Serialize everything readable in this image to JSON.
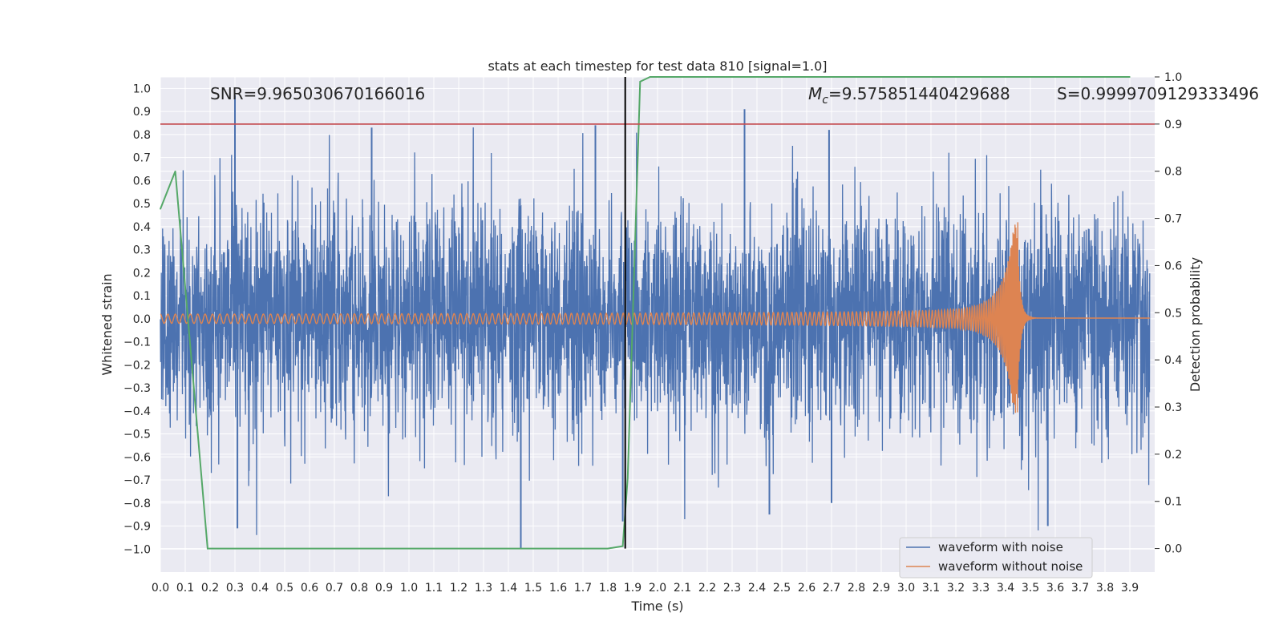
{
  "chart_data": {
    "type": "line",
    "title": "stats at each timestep for test data 810 [signal=1.0]",
    "xlabel": "Time (s)",
    "ylabel": "Whitened strain",
    "y2label": "Detection probability",
    "xlim": [
      0.0,
      4.0
    ],
    "ylim": [
      -1.1,
      1.05
    ],
    "y2lim": [
      -0.05,
      1.0
    ],
    "x_ticks": [
      0.0,
      0.1,
      0.2,
      0.3,
      0.4,
      0.5,
      0.6,
      0.7,
      0.8,
      0.9,
      1.0,
      1.1,
      1.2,
      1.3,
      1.4,
      1.5,
      1.6,
      1.7,
      1.8,
      1.9,
      2.0,
      2.1,
      2.2,
      2.3,
      2.4,
      2.5,
      2.6,
      2.7,
      2.8,
      2.9,
      3.0,
      3.1,
      3.2,
      3.3,
      3.4,
      3.5,
      3.6,
      3.7,
      3.8,
      3.9
    ],
    "y_ticks": [
      1.0,
      0.9,
      0.8,
      0.7,
      0.6,
      0.5,
      0.4,
      0.3,
      0.2,
      0.1,
      0.0,
      -0.1,
      -0.2,
      -0.3,
      -0.4,
      -0.5,
      -0.6,
      -0.7,
      -0.8,
      -0.9,
      -1.0
    ],
    "y2_ticks": [
      1.0,
      0.9,
      0.8,
      0.7,
      0.6,
      0.5,
      0.4,
      0.3,
      0.2,
      0.1,
      0.0
    ],
    "annotations": {
      "snr": "SNR=9.965030670166016",
      "mc_symbol": "M",
      "mc_sub": "c",
      "mc_value": "=9.575851440429688",
      "s": "S=0.9999709129333496"
    },
    "threshold_line": {
      "axis": "y2",
      "value": 0.9,
      "color": "#c44e52"
    },
    "event_marker": {
      "x": 1.87,
      "color": "#000000"
    },
    "legend": {
      "position": "lower-right",
      "entries": [
        {
          "label": "waveform with noise",
          "color": "#4c72b0"
        },
        {
          "label": "waveform without noise",
          "color": "#dd8452"
        }
      ]
    },
    "series": [
      {
        "name": "waveform with noise",
        "axis": "y",
        "color": "#4c72b0",
        "kind": "noise",
        "amplitude_envelope": 0.97,
        "notable_spikes": [
          {
            "x": 0.3,
            "y": 0.97
          },
          {
            "x": 0.31,
            "y": -0.91
          },
          {
            "x": 0.85,
            "y": 0.83
          },
          {
            "x": 1.45,
            "y": -1.0
          },
          {
            "x": 1.75,
            "y": 0.84
          },
          {
            "x": 2.35,
            "y": 0.91
          },
          {
            "x": 2.69,
            "y": 0.82
          },
          {
            "x": 2.45,
            "y": -0.85
          },
          {
            "x": 2.7,
            "y": -0.8
          },
          {
            "x": 3.57,
            "y": -0.9
          },
          {
            "x": 1.86,
            "y": -0.88
          }
        ]
      },
      {
        "name": "waveform without noise",
        "axis": "y",
        "color": "#dd8452",
        "kind": "chirp",
        "merger_time": 3.45,
        "start_frequency_hz": 33,
        "start_amplitude": 0.02,
        "peak_amplitude": 0.42
      },
      {
        "name": "detection probability",
        "axis": "y2",
        "color": "#55a868",
        "x": [
          0.0,
          0.06,
          0.19,
          0.21,
          1.8,
          1.86,
          1.88,
          1.93,
          1.97,
          2.05,
          3.9
        ],
        "y": [
          0.72,
          0.8,
          0.0,
          0.0,
          0.0,
          0.005,
          0.15,
          0.99,
          1.0,
          1.0,
          1.0
        ]
      }
    ]
  }
}
